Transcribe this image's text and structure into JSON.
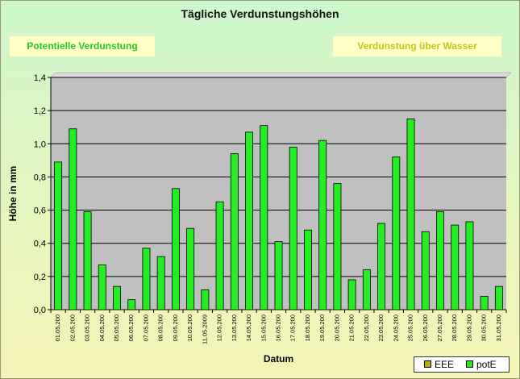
{
  "title": "Tägliche Verdunstungshöhen",
  "buttons": {
    "potential": "Potentielle Verdunstung",
    "water": "Verdunstung über Wasser"
  },
  "colors": {
    "bar": "#22ee22",
    "plot_bg": "#c0c0c0",
    "eee": "#b4b400",
    "pote": "#22ee22"
  },
  "chart_data": {
    "type": "bar",
    "xlabel": "Datum",
    "ylabel": "Höhe in mm",
    "ylim": [
      0,
      1.4
    ],
    "yticks": [
      "0,0",
      "0,2",
      "0,4",
      "0,6",
      "0,8",
      "1,0",
      "1,2",
      "1,4"
    ],
    "grid": true,
    "legend_position": "bottom-right",
    "legend": [
      "EEE",
      "potE"
    ],
    "categories": [
      "01.05.200",
      "02.05.200",
      "03.05.200",
      "04.05.200",
      "05.05.200",
      "06.05.200",
      "07.05.200",
      "08.05.200",
      "09.05.200",
      "10.05.200",
      "11.05.2009",
      "12.05.200",
      "13.05.200",
      "14.05.200",
      "15.05.200",
      "16.05.200",
      "17.05.200",
      "18.05.200",
      "19.05.200",
      "20.05.200",
      "21.05.200",
      "22.05.200",
      "23.05.200",
      "24.05.200",
      "25.05.200",
      "26.05.200",
      "27.05.200",
      "28.05.200",
      "29.05.200",
      "30.05.200",
      "31.05.200"
    ],
    "series": [
      {
        "name": "potE",
        "values": [
          0.89,
          1.09,
          0.59,
          0.27,
          0.14,
          0.06,
          0.37,
          0.32,
          0.73,
          0.49,
          0.12,
          0.65,
          0.94,
          1.07,
          1.11,
          0.41,
          0.98,
          0.48,
          1.02,
          0.76,
          0.18,
          0.24,
          0.52,
          0.92,
          1.15,
          0.47,
          0.59,
          0.51,
          0.53,
          0.08,
          0.14
        ]
      }
    ]
  }
}
